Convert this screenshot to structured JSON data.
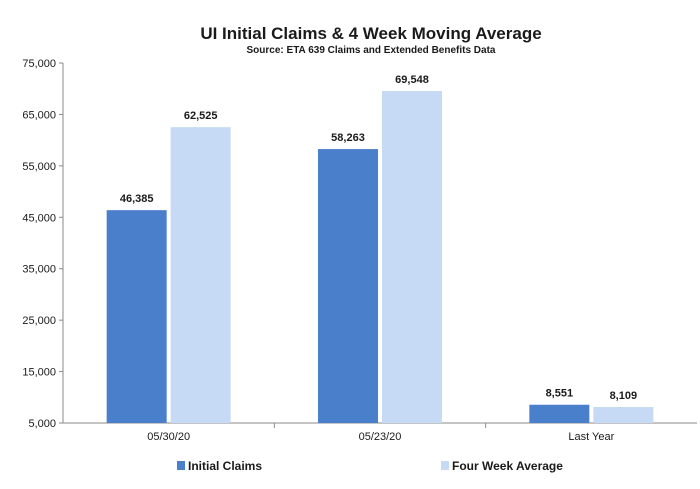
{
  "chart_data": {
    "type": "bar",
    "title": "UI Initial Claims &  4 Week Moving Average",
    "subtitle": "Source: ETA 639 Claims and Extended Benefits Data",
    "categories": [
      "05/30/20",
      "05/23/20",
      "Last Year"
    ],
    "series": [
      {
        "name": "Initial Claims",
        "color": "#4a7fcc",
        "values": [
          46385,
          58263,
          8551
        ],
        "labels": [
          "46,385",
          "58,263",
          "8,551"
        ]
      },
      {
        "name": "Four Week Average",
        "color": "#c6daf5",
        "values": [
          62525,
          69548,
          8109
        ],
        "labels": [
          "62,525",
          "69,548",
          "8,109"
        ]
      }
    ],
    "ylim": [
      5000,
      75000
    ],
    "yticks": [
      75000,
      65000,
      55000,
      45000,
      35000,
      25000,
      15000,
      5000
    ],
    "ytick_labels": [
      "75,000",
      "65,000",
      "55,000",
      "45,000",
      "35,000",
      "25,000",
      "15,000",
      "5,000"
    ],
    "xlabel": "",
    "ylabel": "",
    "grid": false,
    "legend_position": "bottom"
  }
}
